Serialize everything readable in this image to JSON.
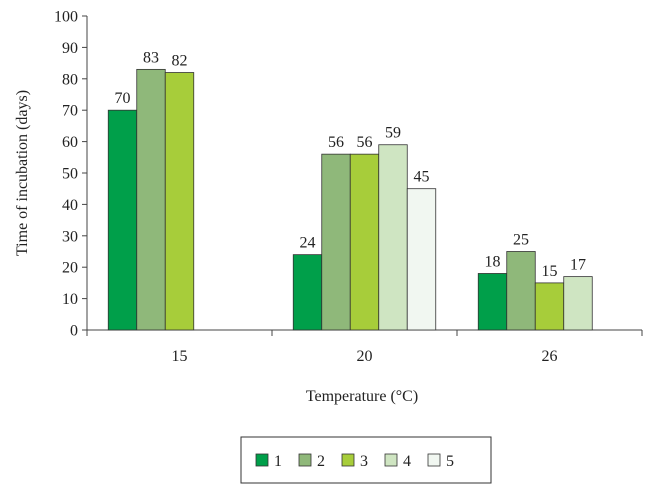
{
  "chart_data": {
    "type": "bar",
    "categories": [
      "15",
      "20",
      "26"
    ],
    "series": [
      {
        "name": "1",
        "color": "#009f4a",
        "values": [
          70,
          24,
          18
        ]
      },
      {
        "name": "2",
        "color": "#8fb87a",
        "values": [
          83,
          56,
          25
        ]
      },
      {
        "name": "3",
        "color": "#a7cd3a",
        "values": [
          82,
          56,
          15
        ]
      },
      {
        "name": "4",
        "color": "#cfe5c2",
        "values": [
          null,
          59,
          17
        ]
      },
      {
        "name": "5",
        "color": "#f1f7f1",
        "values": [
          null,
          45,
          null
        ]
      }
    ],
    "xlabel": "Temperature (°C)",
    "ylabel": "Time of incubation (days)",
    "ylim": [
      0,
      100
    ],
    "yticks": [
      "0",
      "10",
      "20",
      "30",
      "40",
      "50",
      "60",
      "70",
      "80",
      "90",
      "100"
    ],
    "grid": false,
    "legend_position": "bottom"
  }
}
